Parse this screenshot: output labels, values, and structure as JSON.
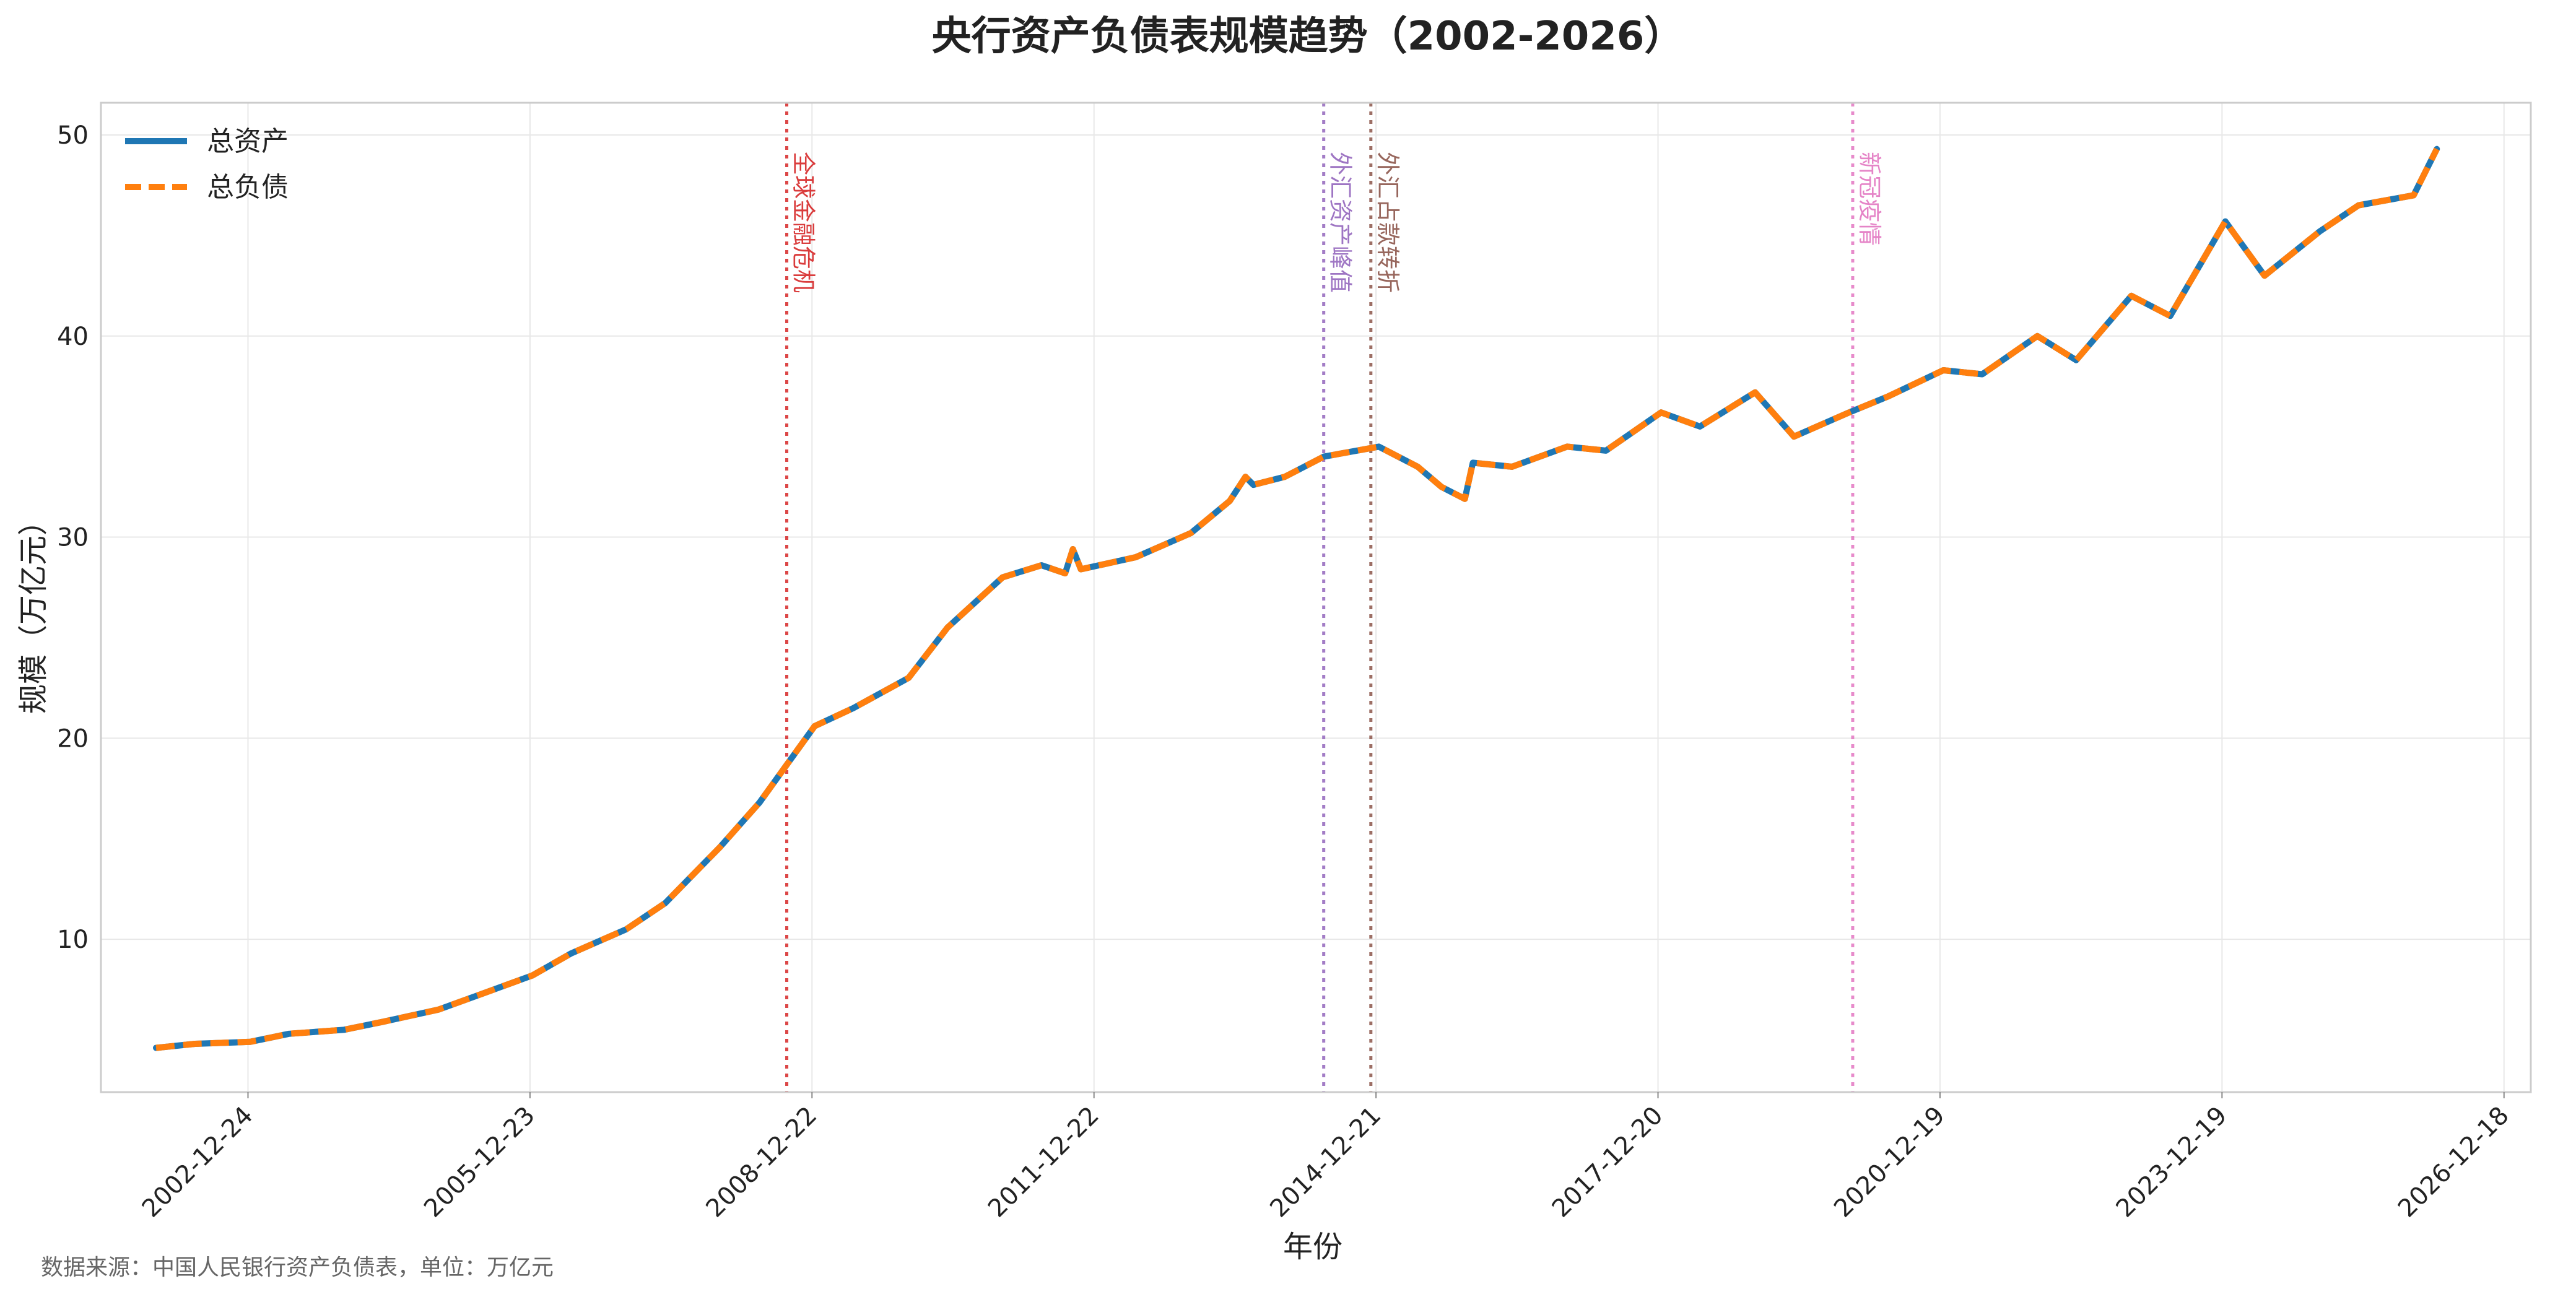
{
  "chart_data": {
    "type": "line",
    "title": "央行资产负债表规模趋势（2002-2026）",
    "xlabel": "年份",
    "ylabel": "规模（万亿元）",
    "x_axis_type": "date",
    "xlim": [
      "2001-06-01",
      "2027-04-01"
    ],
    "ylim": [
      2.4,
      51.6
    ],
    "x_ticks": [
      "2002-12-24",
      "2005-12-23",
      "2008-12-22",
      "2011-12-22",
      "2014-12-21",
      "2017-12-20",
      "2020-12-19",
      "2023-12-19",
      "2026-12-18"
    ],
    "y_ticks": [
      10,
      20,
      30,
      40,
      50
    ],
    "grid": true,
    "legend_position": "top-left",
    "colors": {
      "assets": "#1f77b4",
      "liabilities": "#ff7f0e"
    },
    "series": [
      {
        "name": "总资产",
        "style": "solid",
        "points": [
          [
            "2002-01-01",
            4.6
          ],
          [
            "2002-06-01",
            4.8
          ],
          [
            "2003-01-01",
            4.9
          ],
          [
            "2003-06-01",
            5.3
          ],
          [
            "2004-01-01",
            5.5
          ],
          [
            "2004-06-01",
            5.9
          ],
          [
            "2005-01-01",
            6.5
          ],
          [
            "2005-06-01",
            7.2
          ],
          [
            "2006-01-01",
            8.2
          ],
          [
            "2006-06-01",
            9.3
          ],
          [
            "2007-01-01",
            10.5
          ],
          [
            "2007-06-01",
            11.8
          ],
          [
            "2008-01-01",
            14.6
          ],
          [
            "2008-06-01",
            16.8
          ],
          [
            "2009-01-01",
            20.6
          ],
          [
            "2009-06-01",
            21.5
          ],
          [
            "2010-01-01",
            23.0
          ],
          [
            "2010-06-01",
            25.5
          ],
          [
            "2011-01-01",
            28.0
          ],
          [
            "2011-06-01",
            28.6
          ],
          [
            "2011-09-01",
            28.2
          ],
          [
            "2011-10-01",
            29.4
          ],
          [
            "2011-11-01",
            28.4
          ],
          [
            "2012-06-01",
            29.0
          ],
          [
            "2013-01-01",
            30.2
          ],
          [
            "2013-06-01",
            31.8
          ],
          [
            "2013-08-01",
            33.0
          ],
          [
            "2013-09-01",
            32.6
          ],
          [
            "2014-01-01",
            33.0
          ],
          [
            "2014-06-01",
            34.0
          ],
          [
            "2015-01-01",
            34.5
          ],
          [
            "2015-06-01",
            33.5
          ],
          [
            "2015-09-01",
            32.5
          ],
          [
            "2015-12-01",
            31.9
          ],
          [
            "2016-01-01",
            33.7
          ],
          [
            "2016-06-01",
            33.5
          ],
          [
            "2017-01-01",
            34.5
          ],
          [
            "2017-06-01",
            34.3
          ],
          [
            "2018-01-01",
            36.2
          ],
          [
            "2018-06-01",
            35.5
          ],
          [
            "2019-01-01",
            37.2
          ],
          [
            "2019-06-01",
            35.0
          ],
          [
            "2020-01-01",
            36.2
          ],
          [
            "2020-06-01",
            37.0
          ],
          [
            "2021-01-01",
            38.3
          ],
          [
            "2021-06-01",
            38.1
          ],
          [
            "2022-01-01",
            40.0
          ],
          [
            "2022-06-01",
            38.8
          ],
          [
            "2023-01-01",
            42.0
          ],
          [
            "2023-06-01",
            41.0
          ],
          [
            "2024-01-01",
            45.7
          ],
          [
            "2024-06-01",
            43.0
          ],
          [
            "2025-01-01",
            45.2
          ],
          [
            "2025-06-01",
            46.5
          ],
          [
            "2026-01-01",
            47.0
          ],
          [
            "2026-04-01",
            49.3
          ]
        ]
      },
      {
        "name": "总负债",
        "style": "dashed",
        "note": "same values as 总资产"
      }
    ],
    "annotations": [
      {
        "date": "2008-09-15",
        "label": "全球金融危机",
        "color": "#d62728"
      },
      {
        "date": "2014-06-01",
        "label": "外汇资产峰值",
        "color": "#9467bd"
      },
      {
        "date": "2014-12-01",
        "label": "外汇占款转折",
        "color": "#8c564b"
      },
      {
        "date": "2020-01-15",
        "label": "新冠疫情",
        "color": "#e377c2"
      }
    ]
  },
  "footnote": "数据来源：中国人民银行资产负债表，单位：万亿元"
}
